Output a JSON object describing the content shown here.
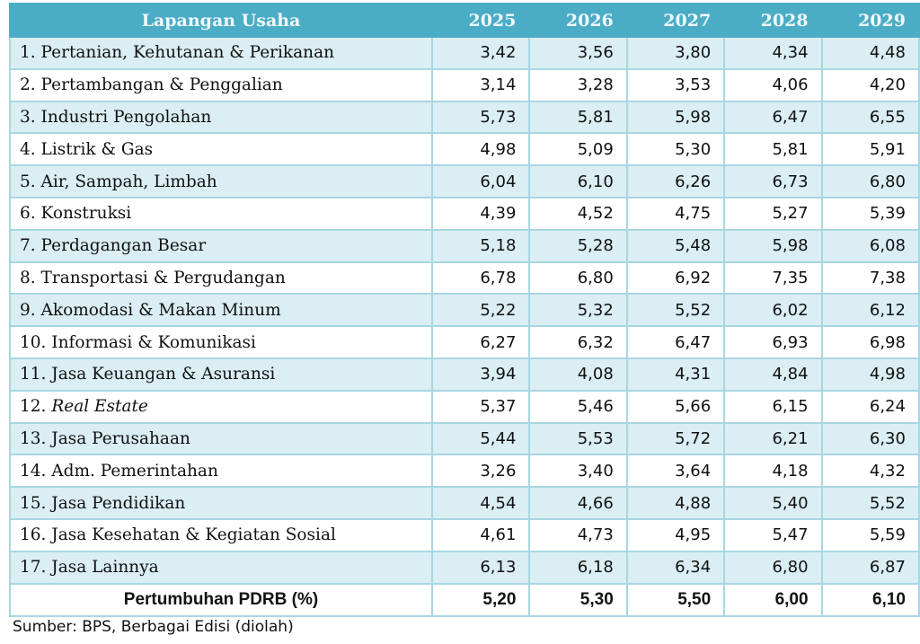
{
  "table": {
    "header": [
      "Lapangan Usaha",
      "2025",
      "2026",
      "2027",
      "2028",
      "2029"
    ],
    "rows": [
      {
        "label": "1. Pertanian, Kehutanan &  Perikanan",
        "values": [
          "3,42",
          "3,56",
          "3,80",
          "4,34",
          "4,48"
        ]
      },
      {
        "label": "2. Pertambangan & Penggalian",
        "values": [
          "3,14",
          "3,28",
          "3,53",
          "4,06",
          "4,20"
        ]
      },
      {
        "label": "3. Industri Pengolahan",
        "values": [
          "5,73",
          "5,81",
          "5,98",
          "6,47",
          "6,55"
        ]
      },
      {
        "label": "4. Listrik & Gas",
        "values": [
          "4,98",
          "5,09",
          "5,30",
          "5,81",
          "5,91"
        ]
      },
      {
        "label": "5. Air, Sampah, Limbah",
        "values": [
          "6,04",
          "6,10",
          "6,26",
          "6,73",
          "6,80"
        ]
      },
      {
        "label": "6. Konstruksi",
        "values": [
          "4,39",
          "4,52",
          "4,75",
          "5,27",
          "5,39"
        ]
      },
      {
        "label": "7. Perdagangan Besar",
        "values": [
          "5,18",
          "5,28",
          "5,48",
          "5,98",
          "6,08"
        ]
      },
      {
        "label": "8. Transportasi & Pergudangan",
        "values": [
          "6,78",
          "6,80",
          "6,92",
          "7,35",
          "7,38"
        ]
      },
      {
        "label": "9. Akomodasi & Makan Minum",
        "values": [
          "5,22",
          "5,32",
          "5,52",
          "6,02",
          "6,12"
        ]
      },
      {
        "label": "10. Informasi & Komunikasi",
        "values": [
          "6,27",
          "6,32",
          "6,47",
          "6,93",
          "6,98"
        ]
      },
      {
        "label": "11. Jasa Keuangan & Asuransi",
        "values": [
          "3,94",
          "4,08",
          "4,31",
          "4,84",
          "4,98"
        ]
      },
      {
        "label": "12. Real Estate",
        "values": [
          "5,37",
          "5,46",
          "5,66",
          "6,15",
          "6,24"
        ]
      },
      {
        "label": "13. Jasa Perusahaan",
        "values": [
          "5,44",
          "5,53",
          "5,72",
          "6,21",
          "6,30"
        ]
      },
      {
        "label": "14. Adm. Pemerintahan",
        "values": [
          "3,26",
          "3,40",
          "3,64",
          "4,18",
          "4,32"
        ]
      },
      {
        "label": "15. Jasa Pendidikan",
        "values": [
          "4,54",
          "4,66",
          "4,88",
          "5,40",
          "5,52"
        ]
      },
      {
        "label": "16. Jasa Kesehatan & Kegiatan Sosial",
        "values": [
          "4,61",
          "4,73",
          "4,95",
          "5,47",
          "5,59"
        ]
      },
      {
        "label": "17. Jasa Lainnya",
        "values": [
          "6,13",
          "6,18",
          "6,34",
          "6,80",
          "6,87"
        ]
      }
    ],
    "total": {
      "label": "Pertumbuhan PDRB (%)",
      "values": [
        "5,20",
        "5,30",
        "5,50",
        "6,00",
        "6,10"
      ]
    }
  },
  "source": "Sumber: BPS, Berbagai Edisi (diolah)",
  "colors": {
    "header_bg": "#4bacc6",
    "band_bg": "#daeef3",
    "border": "#a9d6e3"
  }
}
